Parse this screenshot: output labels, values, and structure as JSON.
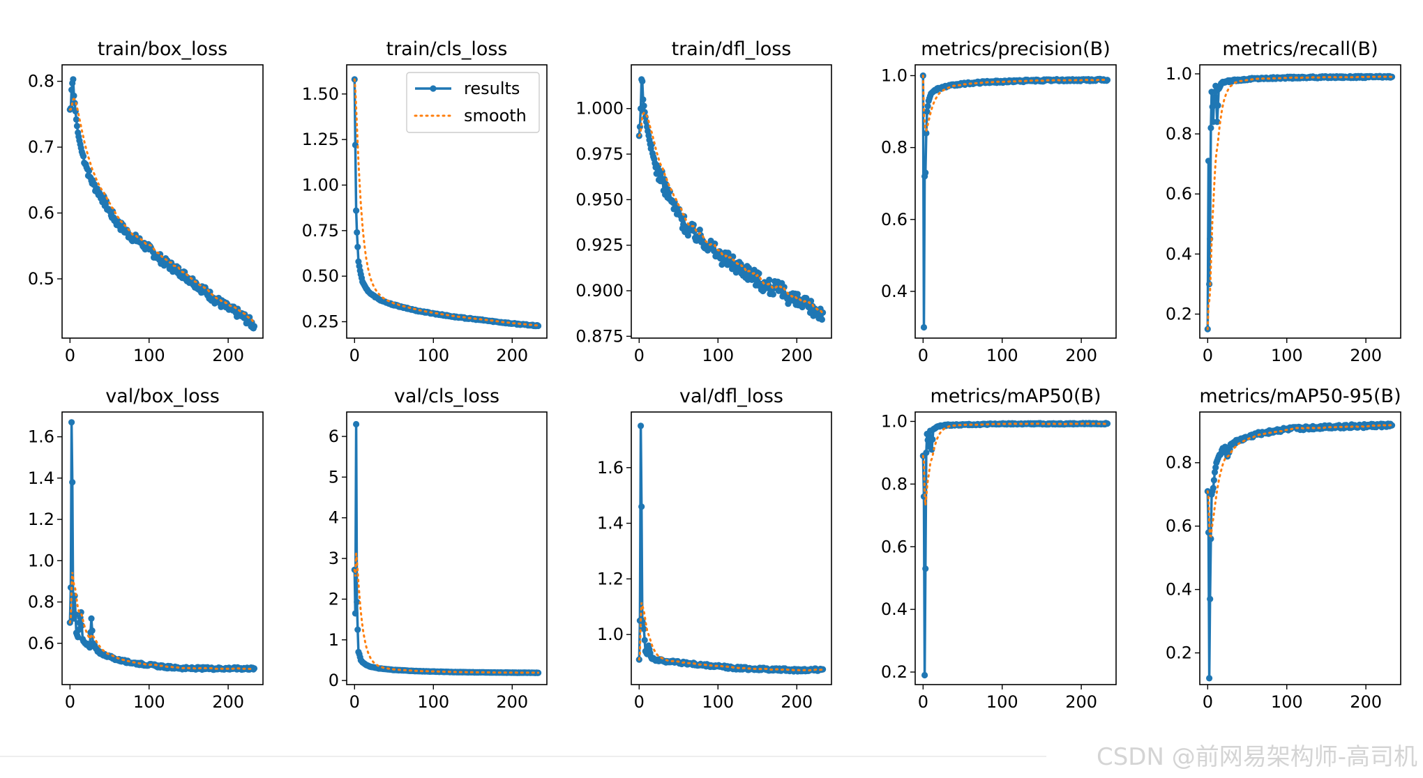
{
  "watermark": "CSDN @前网易架构师-高司机",
  "colors": {
    "results": "#1f77b4",
    "smooth": "#ff7f0e",
    "axis": "#000000"
  },
  "legend": {
    "results_label": "results",
    "smooth_label": "smooth",
    "location": "upper-right",
    "panel": 1
  },
  "chart_data": [
    {
      "type": "line",
      "title": "train/box_loss",
      "xlim": [
        -10,
        244
      ],
      "ylim": [
        0.41,
        0.825
      ],
      "xticks": [
        0,
        100,
        200
      ],
      "yticks": [
        0.5,
        0.6,
        0.7,
        0.8
      ],
      "ytick_labels": [
        "0.5",
        "0.6",
        "0.7",
        "0.8"
      ],
      "x_end": 233,
      "points": [
        [
          0,
          0.757
        ],
        [
          1,
          0.759
        ],
        [
          2,
          0.787
        ],
        [
          3,
          0.797
        ],
        [
          4,
          0.803
        ],
        [
          5,
          0.778
        ],
        [
          6,
          0.767
        ],
        [
          8,
          0.742
        ],
        [
          10,
          0.722
        ],
        [
          12,
          0.71
        ],
        [
          15,
          0.693
        ],
        [
          20,
          0.674
        ],
        [
          25,
          0.655
        ],
        [
          30,
          0.643
        ],
        [
          40,
          0.625
        ],
        [
          50,
          0.603
        ],
        [
          60,
          0.585
        ],
        [
          75,
          0.567
        ],
        [
          90,
          0.555
        ],
        [
          100,
          0.545
        ],
        [
          120,
          0.525
        ],
        [
          140,
          0.51
        ],
        [
          160,
          0.492
        ],
        [
          180,
          0.472
        ],
        [
          200,
          0.455
        ],
        [
          215,
          0.446
        ],
        [
          225,
          0.437
        ],
        [
          233,
          0.428
        ]
      ],
      "noise": 0.007
    },
    {
      "type": "line",
      "title": "train/cls_loss",
      "xlim": [
        -10,
        244
      ],
      "ylim": [
        0.16,
        1.66
      ],
      "xticks": [
        0,
        100,
        200
      ],
      "yticks": [
        0.25,
        0.5,
        0.75,
        1.0,
        1.25,
        1.5
      ],
      "ytick_labels": [
        "0.25",
        "0.50",
        "0.75",
        "1.00",
        "1.25",
        "1.50"
      ],
      "x_end": 233,
      "points": [
        [
          0,
          1.58
        ],
        [
          2,
          0.86
        ],
        [
          3,
          0.74
        ],
        [
          4,
          0.66
        ],
        [
          5,
          0.58
        ],
        [
          7,
          0.53
        ],
        [
          10,
          0.47
        ],
        [
          15,
          0.43
        ],
        [
          20,
          0.405
        ],
        [
          30,
          0.375
        ],
        [
          40,
          0.355
        ],
        [
          60,
          0.33
        ],
        [
          80,
          0.31
        ],
        [
          100,
          0.295
        ],
        [
          130,
          0.275
        ],
        [
          160,
          0.26
        ],
        [
          200,
          0.24
        ],
        [
          233,
          0.227
        ]
      ],
      "noise": 0.003
    },
    {
      "type": "line",
      "title": "train/dfl_loss",
      "xlim": [
        -10,
        244
      ],
      "ylim": [
        0.874,
        1.024
      ],
      "xticks": [
        0,
        100,
        200
      ],
      "yticks": [
        0.875,
        0.9,
        0.925,
        0.95,
        0.975,
        1.0
      ],
      "ytick_labels": [
        "0.875",
        "0.900",
        "0.925",
        "0.950",
        "0.975",
        "1.000"
      ],
      "x_end": 233,
      "points": [
        [
          0,
          0.985
        ],
        [
          1,
          0.99
        ],
        [
          2,
          1.0
        ],
        [
          3,
          1.016
        ],
        [
          4,
          1.015
        ],
        [
          5,
          1.005
        ],
        [
          7,
          0.998
        ],
        [
          10,
          0.99
        ],
        [
          15,
          0.978
        ],
        [
          20,
          0.97
        ],
        [
          30,
          0.96
        ],
        [
          40,
          0.95
        ],
        [
          50,
          0.942
        ],
        [
          60,
          0.935
        ],
        [
          75,
          0.93
        ],
        [
          90,
          0.925
        ],
        [
          100,
          0.92
        ],
        [
          120,
          0.915
        ],
        [
          140,
          0.91
        ],
        [
          160,
          0.903
        ],
        [
          180,
          0.9
        ],
        [
          200,
          0.894
        ],
        [
          215,
          0.891
        ],
        [
          233,
          0.888
        ]
      ],
      "noise": 0.0045
    },
    {
      "type": "line",
      "title": "metrics/precision(B)",
      "xlim": [
        -10,
        244
      ],
      "ylim": [
        0.27,
        1.03
      ],
      "xticks": [
        0,
        100,
        200
      ],
      "yticks": [
        0.4,
        0.6,
        0.8,
        1.0
      ],
      "ytick_labels": [
        "0.4",
        "0.6",
        "0.8",
        "1.0"
      ],
      "x_end": 233,
      "points": [
        [
          0,
          1.0
        ],
        [
          1,
          0.3
        ],
        [
          2,
          0.72
        ],
        [
          3,
          0.73
        ],
        [
          4,
          0.84
        ],
        [
          5,
          0.9
        ],
        [
          7,
          0.93
        ],
        [
          10,
          0.95
        ],
        [
          15,
          0.96
        ],
        [
          20,
          0.965
        ],
        [
          30,
          0.97
        ],
        [
          50,
          0.977
        ],
        [
          80,
          0.982
        ],
        [
          120,
          0.985
        ],
        [
          160,
          0.987
        ],
        [
          233,
          0.988
        ]
      ],
      "noise": 0.003
    },
    {
      "type": "line",
      "title": "metrics/recall(B)",
      "xlim": [
        -10,
        244
      ],
      "ylim": [
        0.12,
        1.03
      ],
      "xticks": [
        0,
        100,
        200
      ],
      "yticks": [
        0.2,
        0.4,
        0.6,
        0.8,
        1.0
      ],
      "ytick_labels": [
        "0.2",
        "0.4",
        "0.6",
        "0.8",
        "1.0"
      ],
      "x_end": 233,
      "points": [
        [
          0,
          0.15
        ],
        [
          1,
          0.71
        ],
        [
          2,
          0.3
        ],
        [
          3,
          0.45
        ],
        [
          4,
          0.82
        ],
        [
          5,
          0.94
        ],
        [
          7,
          0.84
        ],
        [
          8,
          0.92
        ],
        [
          10,
          0.96
        ],
        [
          12,
          0.84
        ],
        [
          14,
          0.95
        ],
        [
          18,
          0.97
        ],
        [
          25,
          0.975
        ],
        [
          40,
          0.98
        ],
        [
          60,
          0.984
        ],
        [
          100,
          0.987
        ],
        [
          150,
          0.989
        ],
        [
          233,
          0.99
        ]
      ],
      "noise": 0.003
    },
    {
      "type": "line",
      "title": "val/box_loss",
      "xlim": [
        -10,
        244
      ],
      "ylim": [
        0.4,
        1.72
      ],
      "xticks": [
        0,
        100,
        200
      ],
      "yticks": [
        0.6,
        0.8,
        1.0,
        1.2,
        1.4,
        1.6
      ],
      "ytick_labels": [
        "0.6",
        "0.8",
        "1.0",
        "1.2",
        "1.4",
        "1.6"
      ],
      "x_end": 233,
      "points": [
        [
          0,
          0.7
        ],
        [
          1,
          0.87
        ],
        [
          2,
          1.67
        ],
        [
          3,
          1.38
        ],
        [
          4,
          0.74
        ],
        [
          5,
          0.72
        ],
        [
          6,
          0.83
        ],
        [
          8,
          0.65
        ],
        [
          10,
          0.63
        ],
        [
          12,
          0.7
        ],
        [
          14,
          0.75
        ],
        [
          16,
          0.62
        ],
        [
          20,
          0.6
        ],
        [
          25,
          0.58
        ],
        [
          27,
          0.72
        ],
        [
          29,
          0.6
        ],
        [
          35,
          0.56
        ],
        [
          40,
          0.55
        ],
        [
          50,
          0.535
        ],
        [
          60,
          0.52
        ],
        [
          80,
          0.505
        ],
        [
          100,
          0.495
        ],
        [
          120,
          0.485
        ],
        [
          150,
          0.478
        ],
        [
          233,
          0.478
        ]
      ],
      "noise": 0.006
    },
    {
      "type": "line",
      "title": "val/cls_loss",
      "xlim": [
        -10,
        244
      ],
      "ylim": [
        -0.1,
        6.6
      ],
      "xticks": [
        0,
        100,
        200
      ],
      "yticks": [
        0,
        1,
        2,
        3,
        4,
        5,
        6
      ],
      "ytick_labels": [
        "0",
        "1",
        "2",
        "3",
        "4",
        "5",
        "6"
      ],
      "x_end": 233,
      "points": [
        [
          0,
          2.72
        ],
        [
          1,
          1.65
        ],
        [
          2,
          6.3
        ],
        [
          3,
          1.93
        ],
        [
          4,
          1.25
        ],
        [
          5,
          0.7
        ],
        [
          6,
          0.65
        ],
        [
          8,
          0.5
        ],
        [
          10,
          0.45
        ],
        [
          15,
          0.38
        ],
        [
          20,
          0.34
        ],
        [
          30,
          0.3
        ],
        [
          50,
          0.26
        ],
        [
          80,
          0.23
        ],
        [
          120,
          0.21
        ],
        [
          160,
          0.2
        ],
        [
          233,
          0.19
        ]
      ],
      "noise": 0.004
    },
    {
      "type": "line",
      "title": "val/dfl_loss",
      "xlim": [
        -10,
        244
      ],
      "ylim": [
        0.82,
        1.8
      ],
      "xticks": [
        0,
        100,
        200
      ],
      "yticks": [
        1.0,
        1.2,
        1.4,
        1.6
      ],
      "ytick_labels": [
        "1.0",
        "1.2",
        "1.4",
        "1.6"
      ],
      "x_end": 233,
      "points": [
        [
          0,
          0.91
        ],
        [
          1,
          1.05
        ],
        [
          2,
          1.75
        ],
        [
          3,
          1.46
        ],
        [
          4,
          1.05
        ],
        [
          5,
          1.04
        ],
        [
          6,
          1.02
        ],
        [
          8,
          0.94
        ],
        [
          10,
          0.93
        ],
        [
          12,
          0.96
        ],
        [
          15,
          0.92
        ],
        [
          20,
          0.91
        ],
        [
          30,
          0.905
        ],
        [
          50,
          0.9
        ],
        [
          80,
          0.89
        ],
        [
          120,
          0.88
        ],
        [
          160,
          0.875
        ],
        [
          200,
          0.872
        ],
        [
          233,
          0.875
        ]
      ],
      "noise": 0.005
    },
    {
      "type": "line",
      "title": "metrics/mAP50(B)",
      "xlim": [
        -10,
        244
      ],
      "ylim": [
        0.16,
        1.03
      ],
      "xticks": [
        0,
        100,
        200
      ],
      "yticks": [
        0.2,
        0.4,
        0.6,
        0.8,
        1.0
      ],
      "ytick_labels": [
        "0.2",
        "0.4",
        "0.6",
        "0.8",
        "1.0"
      ],
      "x_end": 233,
      "points": [
        [
          0,
          0.89
        ],
        [
          1,
          0.76
        ],
        [
          2,
          0.19
        ],
        [
          3,
          0.53
        ],
        [
          4,
          0.9
        ],
        [
          5,
          0.96
        ],
        [
          7,
          0.92
        ],
        [
          9,
          0.97
        ],
        [
          11,
          0.91
        ],
        [
          13,
          0.975
        ],
        [
          16,
          0.98
        ],
        [
          20,
          0.985
        ],
        [
          30,
          0.988
        ],
        [
          60,
          0.99
        ],
        [
          100,
          0.992
        ],
        [
          233,
          0.993
        ]
      ],
      "noise": 0.002
    },
    {
      "type": "line",
      "title": "metrics/mAP50-95(B)",
      "xlim": [
        -10,
        244
      ],
      "ylim": [
        0.1,
        0.96
      ],
      "xticks": [
        0,
        100,
        200
      ],
      "yticks": [
        0.2,
        0.4,
        0.6,
        0.8
      ],
      "ytick_labels": [
        "0.2",
        "0.4",
        "0.6",
        "0.8"
      ],
      "x_end": 233,
      "points": [
        [
          0,
          0.71
        ],
        [
          1,
          0.58
        ],
        [
          2,
          0.12
        ],
        [
          3,
          0.37
        ],
        [
          4,
          0.56
        ],
        [
          5,
          0.7
        ],
        [
          7,
          0.72
        ],
        [
          9,
          0.77
        ],
        [
          11,
          0.8
        ],
        [
          14,
          0.82
        ],
        [
          18,
          0.84
        ],
        [
          22,
          0.85
        ],
        [
          25,
          0.82
        ],
        [
          30,
          0.86
        ],
        [
          40,
          0.87
        ],
        [
          50,
          0.88
        ],
        [
          70,
          0.895
        ],
        [
          100,
          0.905
        ],
        [
          150,
          0.913
        ],
        [
          233,
          0.918
        ]
      ],
      "noise": 0.006
    }
  ]
}
